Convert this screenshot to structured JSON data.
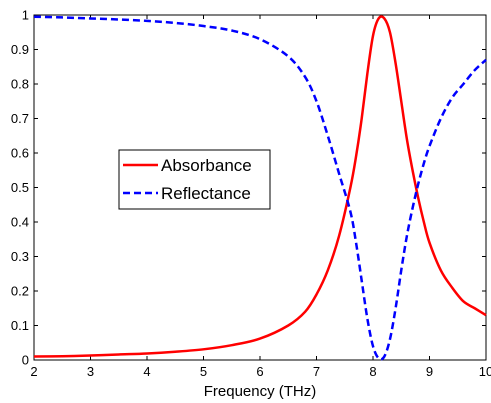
{
  "chart_data": {
    "type": "line",
    "title": "",
    "xlabel": "Frequency (THz)",
    "ylabel": "",
    "xlim": [
      2,
      10
    ],
    "ylim": [
      0,
      1
    ],
    "x_ticks": [
      2,
      3,
      4,
      5,
      6,
      7,
      8,
      9,
      10
    ],
    "y_ticks": [
      0,
      0.1,
      0.2,
      0.3,
      0.4,
      0.5,
      0.6,
      0.7,
      0.8,
      0.9,
      1
    ],
    "x_tick_labels": [
      "2",
      "3",
      "4",
      "5",
      "6",
      "7",
      "8",
      "9",
      "10"
    ],
    "y_tick_labels": [
      "0",
      "0.1",
      "0.2",
      "0.3",
      "0.4",
      "0.5",
      "0.6",
      "0.7",
      "0.8",
      "0.9",
      "1"
    ],
    "grid": false,
    "legend_position": "center-left",
    "series": [
      {
        "name": "Absorbance",
        "color": "#ff0000",
        "line_style": "solid",
        "x": [
          2,
          2.5,
          3,
          3.5,
          4,
          4.5,
          5,
          5.5,
          6,
          6.5,
          6.8,
          7,
          7.2,
          7.4,
          7.6,
          7.7,
          7.8,
          7.9,
          8,
          8.1,
          8.2,
          8.3,
          8.4,
          8.5,
          8.6,
          8.7,
          8.8,
          8.9,
          9,
          9.2,
          9.4,
          9.6,
          9.8,
          10
        ],
        "y": [
          0.01,
          0.011,
          0.013,
          0.016,
          0.019,
          0.024,
          0.031,
          0.043,
          0.062,
          0.1,
          0.14,
          0.19,
          0.26,
          0.36,
          0.5,
          0.59,
          0.7,
          0.83,
          0.94,
          0.99,
          0.99,
          0.95,
          0.86,
          0.75,
          0.64,
          0.55,
          0.47,
          0.4,
          0.34,
          0.26,
          0.21,
          0.17,
          0.15,
          0.13
        ]
      },
      {
        "name": "Reflectance",
        "color": "#0000ff",
        "line_style": "dashed",
        "x": [
          2,
          2.5,
          3,
          3.5,
          4,
          4.5,
          5,
          5.5,
          6,
          6.5,
          6.8,
          7,
          7.2,
          7.4,
          7.6,
          7.7,
          7.8,
          7.9,
          8,
          8.1,
          8.2,
          8.3,
          8.4,
          8.5,
          8.6,
          8.7,
          8.8,
          8.9,
          9,
          9.2,
          9.4,
          9.6,
          9.8,
          10
        ],
        "y": [
          0.995,
          0.993,
          0.99,
          0.987,
          0.983,
          0.977,
          0.968,
          0.955,
          0.93,
          0.88,
          0.82,
          0.75,
          0.65,
          0.54,
          0.43,
          0.34,
          0.23,
          0.12,
          0.04,
          0.005,
          0.01,
          0.06,
          0.15,
          0.26,
          0.36,
          0.44,
          0.51,
          0.57,
          0.62,
          0.7,
          0.76,
          0.8,
          0.84,
          0.87
        ]
      }
    ]
  }
}
